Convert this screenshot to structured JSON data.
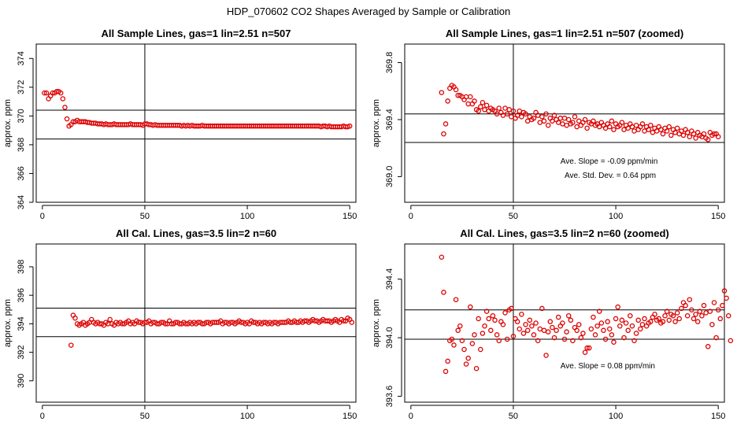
{
  "figure": {
    "title": "HDP_070602  CO2 Shapes Averaged by Sample or Calibration"
  },
  "chart_data": [
    {
      "type": "scatter",
      "title": "All Sample Lines, gas=1 lin=2.51 n=507",
      "xlabel": "",
      "ylabel": "approx. ppm",
      "xlim": [
        -3,
        153
      ],
      "ylim": [
        364,
        375
      ],
      "xticks": [
        0,
        50,
        100,
        150
      ],
      "yticks": [
        364,
        366,
        368,
        370,
        372,
        374
      ],
      "hlines": [
        368.4,
        370.4
      ],
      "vline": 50,
      "color": "#dd0000",
      "annotations": [],
      "series": [
        {
          "start": 1,
          "values": [
            371.6,
            371.6,
            371.2,
            371.4,
            371.6,
            371.6,
            371.7,
            371.7,
            371.6,
            371.2,
            370.6,
            369.8,
            369.3,
            369.4,
            369.6,
            369.6,
            369.7,
            369.6,
            369.6,
            369.6,
            369.6,
            369.55,
            369.55,
            369.5,
            369.5,
            369.5,
            369.45,
            369.45,
            369.45,
            369.4,
            369.45,
            369.4,
            369.4,
            369.4,
            369.45,
            369.4,
            369.4,
            369.4,
            369.4,
            369.4,
            369.4,
            369.4,
            369.45,
            369.4,
            369.4,
            369.4,
            369.4,
            369.4,
            369.35,
            369.45,
            369.45,
            369.4,
            369.4,
            369.35,
            369.4,
            369.35,
            369.35,
            369.35,
            369.35,
            369.35,
            369.35,
            369.35,
            369.35,
            369.35,
            369.35,
            369.35,
            369.35,
            369.3,
            369.35,
            369.3,
            369.35,
            369.3,
            369.35,
            369.3,
            369.3,
            369.3,
            369.3,
            369.35,
            369.3,
            369.3,
            369.3,
            369.3,
            369.3,
            369.3,
            369.3,
            369.3,
            369.3,
            369.3,
            369.3,
            369.3,
            369.3,
            369.3,
            369.3,
            369.3,
            369.3,
            369.3,
            369.3,
            369.3,
            369.3,
            369.3,
            369.3,
            369.3,
            369.3,
            369.3,
            369.3,
            369.3,
            369.3,
            369.3,
            369.3,
            369.3,
            369.3,
            369.3,
            369.3,
            369.3,
            369.3,
            369.3,
            369.3,
            369.3,
            369.3,
            369.3,
            369.3,
            369.3,
            369.3,
            369.3,
            369.3,
            369.3,
            369.3,
            369.3,
            369.3,
            369.3,
            369.3,
            369.3,
            369.3,
            369.3,
            369.3,
            369.25,
            369.3,
            369.3,
            369.25,
            369.3,
            369.25,
            369.25,
            369.25,
            369.25,
            369.25,
            369.25,
            369.3,
            369.25,
            369.25,
            369.3
          ]
        }
      ]
    },
    {
      "type": "scatter",
      "title": "All Sample Lines, gas=1 lin=2.51 n=507 (zoomed)",
      "xlabel": "",
      "ylabel": "approx. ppm",
      "xlim": [
        -3,
        153
      ],
      "ylim": [
        368.82,
        369.93
      ],
      "xticks": [
        0,
        50,
        100,
        150
      ],
      "yticks": [
        369.0,
        369.4,
        369.8
      ],
      "ytick_labels": [
        "369.0",
        "369.4",
        "369.8"
      ],
      "hlines": [
        369.24,
        369.44
      ],
      "vline": 50,
      "color": "#dd0000",
      "annotations": [
        {
          "text": "Ave. Slope =  -0.09  ppm/min",
          "x": 73,
          "y": 369.09
        },
        {
          "text": "Ave. Std. Dev. =  0.64  ppm",
          "x": 75,
          "y": 368.99
        }
      ],
      "series": [
        {
          "start": 15,
          "values": [
            369.59,
            369.3,
            369.37,
            369.53,
            369.62,
            369.64,
            369.63,
            369.61,
            369.57,
            369.57,
            369.56,
            369.54,
            369.56,
            369.51,
            369.56,
            369.51,
            369.53,
            369.47,
            369.46,
            369.49,
            369.52,
            369.47,
            369.5,
            369.46,
            369.48,
            369.47,
            369.46,
            369.44,
            369.48,
            369.45,
            369.43,
            369.48,
            369.44,
            369.47,
            369.42,
            369.46,
            369.41,
            369.43,
            369.46,
            369.42,
            369.45,
            369.44,
            369.39,
            369.42,
            369.4,
            369.41,
            369.45,
            369.43,
            369.38,
            369.42,
            369.39,
            369.44,
            369.36,
            369.41,
            369.39,
            369.43,
            369.4,
            369.38,
            369.41,
            369.37,
            369.41,
            369.36,
            369.4,
            369.37,
            369.38,
            369.42,
            369.35,
            369.39,
            369.36,
            369.38,
            369.4,
            369.34,
            369.38,
            369.37,
            369.39,
            369.36,
            369.37,
            369.35,
            369.38,
            369.36,
            369.34,
            369.37,
            369.35,
            369.39,
            369.33,
            369.37,
            369.35,
            369.36,
            369.38,
            369.33,
            369.36,
            369.34,
            369.37,
            369.35,
            369.32,
            369.36,
            369.33,
            369.35,
            369.37,
            369.32,
            369.35,
            369.33,
            369.36,
            369.31,
            369.34,
            369.32,
            369.35,
            369.33,
            369.3,
            369.34,
            369.32,
            369.35,
            369.29,
            369.33,
            369.31,
            369.34,
            369.3,
            369.32,
            369.29,
            369.33,
            369.31,
            369.28,
            369.32,
            369.3,
            369.27,
            369.31,
            369.29,
            369.28,
            369.3,
            369.27,
            369.26,
            369.31,
            369.29,
            369.3,
            369.3,
            369.28
          ]
        }
      ]
    },
    {
      "type": "scatter",
      "title": "All Cal. Lines, gas=3.5 lin=2 n=60",
      "xlabel": "",
      "ylabel": "approx. ppm",
      "xlim": [
        -3,
        153
      ],
      "ylim": [
        388.5,
        399.6
      ],
      "xticks": [
        0,
        50,
        100,
        150
      ],
      "yticks": [
        390,
        392,
        394,
        396,
        398
      ],
      "hlines": [
        393.1,
        395.1
      ],
      "vline": 50,
      "color": "#dd0000",
      "annotations": [],
      "series": [
        {
          "start": 14,
          "values": [
            392.5,
            394.6,
            394.4,
            394.0,
            393.9,
            394.0,
            394.1,
            393.9,
            394.0,
            394.1,
            394.3,
            394.1,
            394.0,
            394.1,
            394.0,
            394.0,
            393.9,
            394.1,
            394.0,
            394.3,
            394.0,
            393.9,
            394.1,
            394.0,
            394.1,
            394.0,
            394.0,
            394.1,
            394.2,
            394.0,
            394.1,
            394.0,
            394.2,
            394.1,
            394.1,
            394.0,
            394.1,
            394.1,
            394.2,
            394.0,
            394.1,
            394.1,
            394.0,
            394.0,
            394.1,
            394.1,
            394.0,
            394.0,
            394.2,
            394.0,
            394.0,
            394.1,
            394.1,
            394.0,
            394.0,
            394.1,
            394.0,
            394.0,
            394.1,
            394.0,
            394.1,
            394.0,
            394.1,
            394.1,
            394.0,
            394.0,
            394.1,
            394.1,
            394.0,
            394.1,
            394.1,
            394.1,
            394.1,
            394.2,
            394.0,
            394.1,
            394.1,
            394.0,
            394.1,
            394.1,
            394.0,
            394.1,
            394.2,
            394.1,
            394.1,
            394.0,
            394.1,
            394.0,
            394.2,
            394.1,
            394.1,
            394.0,
            394.1,
            394.0,
            394.1,
            394.1,
            394.0,
            394.1,
            394.0,
            394.1,
            394.1,
            394.0,
            394.1,
            394.1,
            394.1,
            394.1,
            394.2,
            394.1,
            394.1,
            394.2,
            394.1,
            394.1,
            394.2,
            394.1,
            394.2,
            394.2,
            394.1,
            394.2,
            394.3,
            394.2,
            394.2,
            394.1,
            394.2,
            394.3,
            394.2,
            394.2,
            394.2,
            394.1,
            394.2,
            394.3,
            394.2,
            394.1,
            394.3,
            394.2,
            394.2,
            394.4,
            394.3,
            394.1
          ]
        }
      ]
    },
    {
      "type": "scatter",
      "title": "All Cal. Lines, gas=3.5 lin=2 n=60 (zoomed)",
      "xlabel": "",
      "ylabel": "approx. ppm",
      "xlim": [
        -3,
        153
      ],
      "ylim": [
        393.56,
        394.64
      ],
      "xticks": [
        0,
        50,
        100,
        150
      ],
      "yticks": [
        393.6,
        394.0,
        394.4
      ],
      "ytick_labels": [
        "393.6",
        "394.0",
        "394.4"
      ],
      "hlines": [
        393.99,
        394.19
      ],
      "vline": 50,
      "color": "#dd0000",
      "annotations": [
        {
          "text": "Ave. Slope =  0.08  ppm/min",
          "x": 73,
          "y": 393.79
        }
      ],
      "series": [
        {
          "start": 15,
          "values": [
            394.55,
            394.31,
            393.77,
            393.84,
            393.98,
            393.99,
            393.95,
            394.26,
            394.05,
            394.08,
            393.98,
            393.92,
            393.82,
            393.86,
            394.21,
            393.96,
            394.02,
            393.79,
            394.13,
            393.92,
            394.03,
            394.08,
            394.18,
            394.13,
            394.05,
            394.15,
            394.12,
            394.02,
            393.98,
            394.11,
            394.09,
            394.17,
            393.99,
            394.19,
            394.2,
            394.01,
            394.13,
            394.11,
            394.06,
            394.16,
            394.03,
            394.09,
            394.05,
            394.12,
            394.08,
            394.02,
            394.1,
            393.98,
            394.06,
            394.2,
            394.05,
            393.88,
            394.04,
            394.11,
            394.07,
            394.0,
            394.05,
            394.14,
            394.08,
            394.1,
            393.99,
            394.04,
            394.15,
            394.12,
            393.98,
            394.07,
            394.05,
            394.09,
            394.0,
            394.03,
            393.9,
            393.93,
            393.93,
            394.06,
            394.14,
            394.02,
            394.08,
            394.18,
            394.1,
            394.05,
            393.99,
            394.11,
            394.06,
            394.02,
            393.97,
            394.13,
            394.21,
            394.08,
            394.12,
            394.0,
            394.1,
            394.05,
            394.15,
            394.08,
            393.98,
            394.03,
            394.12,
            394.06,
            394.09,
            394.13,
            394.08,
            394.1,
            394.11,
            394.14,
            394.16,
            394.12,
            394.13,
            394.1,
            394.11,
            394.15,
            394.18,
            394.12,
            394.16,
            394.15,
            394.11,
            394.17,
            394.13,
            394.2,
            394.24,
            394.22,
            394.15,
            394.26,
            394.19,
            394.13,
            394.16,
            394.11,
            394.18,
            394.15,
            394.22,
            394.17,
            393.94,
            394.18,
            394.09,
            394.24,
            394.0,
            394.19,
            394.13,
            394.22,
            394.32,
            394.27,
            394.15,
            393.98
          ]
        }
      ]
    }
  ]
}
